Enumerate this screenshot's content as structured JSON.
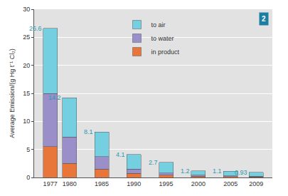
{
  "chart_data": {
    "type": "bar",
    "stacked": true,
    "badge": "2",
    "y_label": "Average Emission/(g Hg t⁻¹ Cl₂)",
    "x": [
      1977,
      1980,
      1985,
      1990,
      1995,
      2000,
      2005,
      2009
    ],
    "series": [
      {
        "name": "in product",
        "color": "#e8763a",
        "values": [
          5.5,
          2.5,
          1.5,
          0.7,
          0.4,
          0.2,
          0.15,
          0.1
        ]
      },
      {
        "name": "to water",
        "color": "#9b8fca",
        "values": [
          9.5,
          4.7,
          2.2,
          0.8,
          0.4,
          0.2,
          0.15,
          0.1
        ]
      },
      {
        "name": "to air",
        "color": "#74cfe0",
        "values": [
          11.6,
          7.0,
          4.4,
          2.6,
          1.9,
          0.8,
          0.8,
          0.73
        ]
      }
    ],
    "totals": [
      26.6,
      14.2,
      8.1,
      4.1,
      2.7,
      1.2,
      1.1,
      0.93
    ],
    "xlim": [
      1974.5,
      2011.5
    ],
    "xticks": [
      1977,
      1980,
      1985,
      1990,
      1995,
      2000,
      2005,
      2009
    ],
    "ylim": [
      0,
      30
    ],
    "yticks": [
      0,
      5,
      10,
      15,
      20,
      25,
      30
    ],
    "grid": true,
    "legend": "top"
  }
}
